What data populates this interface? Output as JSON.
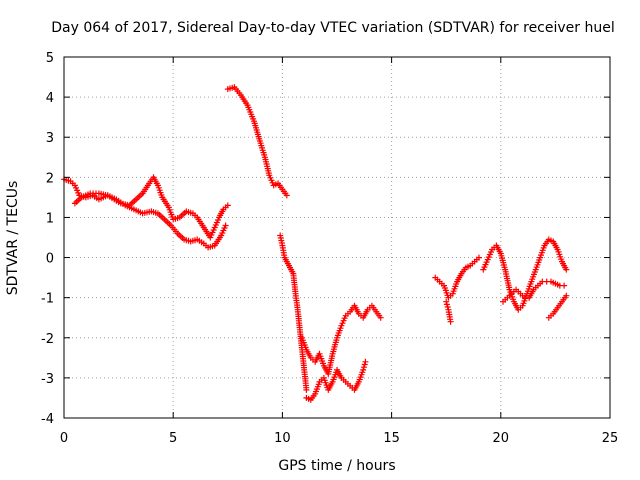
{
  "chart_data": {
    "type": "scatter",
    "title": "Day 064 of 2017, Sidereal Day-to-day VTEC variation (SDTVAR) for receiver huel",
    "xlabel": "GPS time / hours",
    "ylabel": "SDTVAR / TECUs",
    "xlim": [
      0,
      25
    ],
    "ylim": [
      -4,
      5
    ],
    "xticks": [
      0,
      5,
      10,
      15,
      20,
      25
    ],
    "yticks": [
      -4,
      -3,
      -2,
      -1,
      0,
      1,
      2,
      3,
      4,
      5
    ],
    "xtick_labels": [
      "0",
      "5",
      "10",
      "15",
      "20",
      "25"
    ],
    "ytick_labels": [
      "-4",
      "-3",
      "-2",
      "-1",
      "0",
      "1",
      "2",
      "3",
      "4",
      "5"
    ],
    "grid": true,
    "marker": "plus",
    "color": "#ff0000",
    "segments": [
      {
        "name": "series-a-upper",
        "x": [
          0.0,
          0.3,
          0.5,
          0.7,
          1.0,
          1.3,
          1.6,
          2.0,
          2.3,
          2.6,
          3.0,
          3.3,
          3.6,
          3.9,
          4.1,
          4.3,
          4.5,
          4.8,
          5.0,
          5.3,
          5.6,
          5.9,
          6.1,
          6.4,
          6.7,
          6.9,
          7.1,
          7.3,
          7.5
        ],
        "y": [
          1.95,
          1.9,
          1.8,
          1.55,
          1.5,
          1.55,
          1.45,
          1.55,
          1.45,
          1.35,
          1.3,
          1.45,
          1.6,
          1.85,
          2.0,
          1.8,
          1.5,
          1.25,
          0.95,
          1.0,
          1.15,
          1.1,
          1.0,
          0.75,
          0.5,
          0.75,
          1.0,
          1.2,
          1.3
        ]
      },
      {
        "name": "series-a-lower",
        "x": [
          0.5,
          0.8,
          1.2,
          1.6,
          2.0,
          2.4,
          2.8,
          3.2,
          3.6,
          4.0,
          4.3,
          4.6,
          4.9,
          5.2,
          5.5,
          5.8,
          6.1,
          6.4,
          6.6,
          6.9,
          7.2,
          7.4
        ],
        "y": [
          1.35,
          1.5,
          1.6,
          1.6,
          1.55,
          1.45,
          1.3,
          1.2,
          1.1,
          1.15,
          1.1,
          0.95,
          0.8,
          0.6,
          0.45,
          0.4,
          0.45,
          0.35,
          0.25,
          0.3,
          0.55,
          0.8
        ]
      },
      {
        "name": "series-b",
        "x": [
          7.5,
          7.8,
          8.1,
          8.4,
          8.7,
          9.0,
          9.2,
          9.4,
          9.6,
          9.8,
          10.0,
          10.2
        ],
        "y": [
          4.2,
          4.25,
          4.05,
          3.8,
          3.4,
          2.85,
          2.5,
          2.05,
          1.8,
          1.85,
          1.7,
          1.55
        ]
      },
      {
        "name": "series-c-fall",
        "x": [
          9.9,
          10.0,
          10.1,
          10.3,
          10.5,
          10.6,
          10.7,
          10.8,
          10.9,
          11.0,
          11.1
        ],
        "y": [
          0.55,
          0.3,
          0.0,
          -0.2,
          -0.4,
          -0.9,
          -1.3,
          -1.8,
          -2.3,
          -2.8,
          -3.3
        ]
      },
      {
        "name": "series-c-low",
        "x": [
          11.1,
          11.3,
          11.5,
          11.7,
          11.9,
          12.1,
          12.3,
          12.5,
          12.7,
          12.9,
          13.1,
          13.3,
          13.5,
          13.7,
          13.8
        ],
        "y": [
          -3.5,
          -3.55,
          -3.4,
          -3.1,
          -3.0,
          -3.3,
          -3.1,
          -2.8,
          -3.0,
          -3.1,
          -3.2,
          -3.3,
          -3.1,
          -2.8,
          -2.6
        ]
      },
      {
        "name": "series-c-mid",
        "x": [
          10.9,
          11.1,
          11.3,
          11.5,
          11.7,
          11.9,
          12.1,
          12.3,
          12.5,
          12.7,
          12.9,
          13.1,
          13.3,
          13.5,
          13.7,
          13.9,
          14.1,
          14.3,
          14.5
        ],
        "y": [
          -2.0,
          -2.3,
          -2.5,
          -2.6,
          -2.4,
          -2.7,
          -2.9,
          -2.4,
          -2.0,
          -1.7,
          -1.45,
          -1.35,
          -1.2,
          -1.4,
          -1.5,
          -1.3,
          -1.2,
          -1.35,
          -1.5
        ]
      },
      {
        "name": "series-d",
        "x": [
          17.0,
          17.2,
          17.4,
          17.6,
          17.8,
          18.0,
          18.2,
          18.4,
          18.6,
          18.8,
          19.0
        ],
        "y": [
          -0.5,
          -0.6,
          -0.7,
          -1.0,
          -0.9,
          -0.6,
          -0.4,
          -0.25,
          -0.2,
          -0.1,
          0.0
        ]
      },
      {
        "name": "series-d-drop",
        "x": [
          17.5,
          17.6,
          17.7
        ],
        "y": [
          -1.1,
          -1.3,
          -1.6
        ]
      },
      {
        "name": "series-e",
        "x": [
          19.2,
          19.4,
          19.6,
          19.8,
          20.0,
          20.2,
          20.4,
          20.6,
          20.8,
          21.0,
          21.2,
          21.4,
          21.6,
          21.8,
          22.0,
          22.2,
          22.4,
          22.6,
          22.8,
          23.0
        ],
        "y": [
          -0.3,
          -0.05,
          0.2,
          0.3,
          0.1,
          -0.3,
          -0.8,
          -1.1,
          -1.3,
          -1.2,
          -0.9,
          -0.6,
          -0.3,
          0.0,
          0.3,
          0.45,
          0.4,
          0.2,
          -0.1,
          -0.3
        ]
      },
      {
        "name": "series-f",
        "x": [
          20.1,
          20.3,
          20.5,
          20.7,
          20.9,
          21.1,
          21.3,
          21.5,
          21.7,
          21.9,
          22.1,
          22.3,
          22.5,
          22.7,
          22.9
        ],
        "y": [
          -1.1,
          -1.0,
          -0.9,
          -0.8,
          -0.9,
          -1.0,
          -1.0,
          -0.8,
          -0.7,
          -0.6,
          -0.6,
          -0.6,
          -0.65,
          -0.7,
          -0.7
        ]
      },
      {
        "name": "series-g",
        "x": [
          22.2,
          22.4,
          22.6,
          22.8,
          23.0
        ],
        "y": [
          -1.5,
          -1.4,
          -1.25,
          -1.1,
          -0.95
        ]
      }
    ]
  }
}
